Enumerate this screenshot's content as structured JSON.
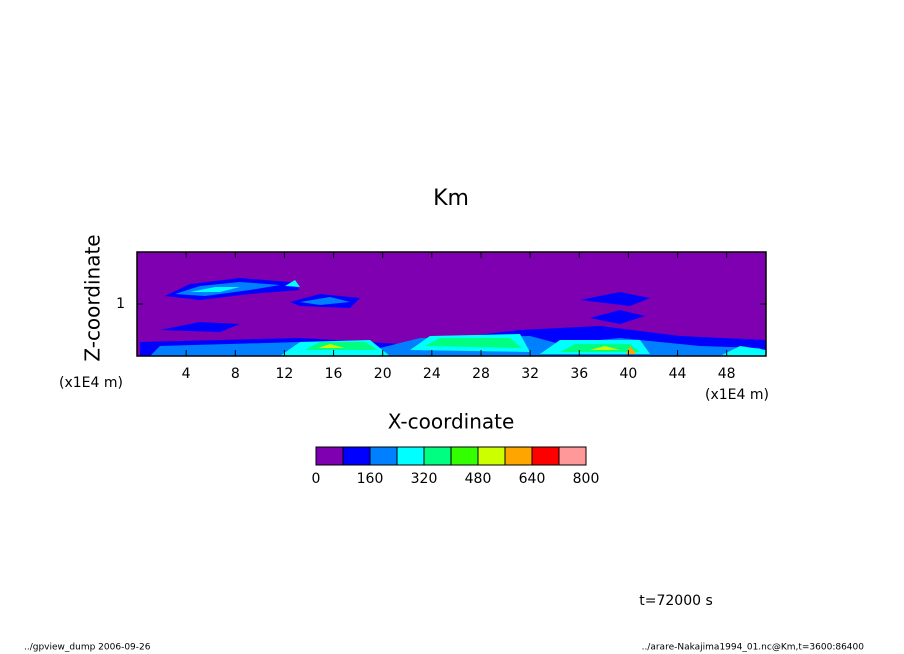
{
  "chart_data": {
    "type": "contour",
    "title": "Km",
    "xlabel": "X-coordinate",
    "ylabel": "Z-coordinate",
    "xunit": "(x1E4 m)",
    "yunit": "(x1E4 m)",
    "xlim": [
      0,
      51.2
    ],
    "xticks": [
      4,
      8,
      12,
      16,
      20,
      24,
      28,
      32,
      36,
      40,
      44,
      48
    ],
    "ylim": [
      0,
      2
    ],
    "yticks": [
      1
    ],
    "colorbar": {
      "levels": [
        0,
        80,
        160,
        240,
        320,
        400,
        480,
        560,
        640,
        720,
        800
      ],
      "colors": [
        "#7f00b0",
        "#0000ff",
        "#0080ff",
        "#00ffff",
        "#00ff80",
        "#33ff00",
        "#ccff00",
        "#ffa500",
        "#ff0000",
        "#ff9999"
      ],
      "ticks": [
        0,
        160,
        320,
        480,
        640,
        800
      ]
    },
    "annotation": "t=72000 s",
    "footer_left": "../gpview_dump  2006-09-26",
    "footer_right": "../arare-Nakajima1994_01.nc@Km,t=3600:86400"
  }
}
